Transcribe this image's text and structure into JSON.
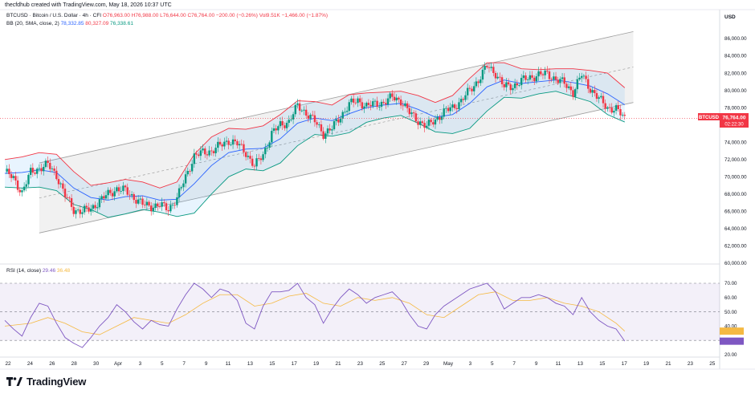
{
  "header": {
    "credit": "thecfdhub created with TradingView.com, May 18, 2026 10:37 UTC",
    "symbol_line": "BTCUSD · Bitcoin / U.S. Dollar · 4h · CFI",
    "ohlc": "O76,963.00 H76,988.00 L76,644.00 C76,764.00 −200.00 (−0.26%)",
    "vol": "Vol9.51K −1,466.00 (−1.87%)",
    "bb_label": "BB (20, SMA, close, 2)",
    "bb_mid": "78,332.85",
    "bb_upper": "80,327.09",
    "bb_lower": "76,338.61",
    "rsi_label": "RSI (14, close)",
    "rsi_value": "29.46",
    "rsi_ma": "36.48",
    "currency": "USD"
  },
  "price_tag": {
    "symbol": "BTCUSD",
    "price": "76,764.00",
    "countdown": "02:22:30"
  },
  "footer": {
    "brand": "TradingView",
    "logo": "tradingview-logo"
  },
  "colors": {
    "up": "#089981",
    "down": "#f23645",
    "bb_mid": "#2962ff",
    "bb_upper": "#f23645",
    "bb_lower": "#089981",
    "rsi": "#7e57c2",
    "rsi_ma": "#f5b942",
    "channel": "#9e9e9e"
  },
  "chart_data": [
    {
      "type": "candlestick",
      "title": "BTCUSD",
      "ylim": [
        60000,
        88000
      ],
      "y_ticks": [
        "86,000.00",
        "84,000.00",
        "82,000.00",
        "80,000.00",
        "78,000.00",
        "76,000.00",
        "74,000.00",
        "72,000.00",
        "70,000.00",
        "68,000.00",
        "66,000.00",
        "64,000.00",
        "62,000.00",
        "60,000.00"
      ],
      "x_ticks": [
        "22",
        "24",
        "26",
        "28",
        "30",
        "Apr",
        "3",
        "5",
        "7",
        "9",
        "11",
        "13",
        "15",
        "17",
        "19",
        "21",
        "23",
        "25",
        "27",
        "29",
        "May",
        "3",
        "5",
        "7",
        "9",
        "11",
        "13",
        "15",
        "17",
        "19",
        "21",
        "23",
        "25"
      ],
      "price_close_path": [
        [
          0,
          70600
        ],
        [
          2,
          69800
        ],
        [
          4,
          68200
        ],
        [
          6,
          70500
        ],
        [
          8,
          71000
        ],
        [
          10,
          71400
        ],
        [
          12,
          70200
        ],
        [
          14,
          67800
        ],
        [
          16,
          66200
        ],
        [
          18,
          66000
        ],
        [
          20,
          66300
        ],
        [
          22,
          67200
        ],
        [
          24,
          68000
        ],
        [
          26,
          68600
        ],
        [
          28,
          68400
        ],
        [
          30,
          67600
        ],
        [
          32,
          66800
        ],
        [
          34,
          66600
        ],
        [
          36,
          66700
        ],
        [
          38,
          66300
        ],
        [
          40,
          67500
        ],
        [
          42,
          70000
        ],
        [
          44,
          72400
        ],
        [
          46,
          72800
        ],
        [
          48,
          73000
        ],
        [
          50,
          73600
        ],
        [
          52,
          74200
        ],
        [
          54,
          73800
        ],
        [
          56,
          72800
        ],
        [
          58,
          71200
        ],
        [
          60,
          72600
        ],
        [
          62,
          75000
        ],
        [
          64,
          76000
        ],
        [
          66,
          76400
        ],
        [
          68,
          78200
        ],
        [
          70,
          77400
        ],
        [
          72,
          76400
        ],
        [
          74,
          75000
        ],
        [
          76,
          75600
        ],
        [
          78,
          77000
        ],
        [
          80,
          78400
        ],
        [
          82,
          78800
        ],
        [
          84,
          78200
        ],
        [
          86,
          78400
        ],
        [
          88,
          78600
        ],
        [
          90,
          79200
        ],
        [
          92,
          78800
        ],
        [
          94,
          77400
        ],
        [
          96,
          76500
        ],
        [
          98,
          75800
        ],
        [
          100,
          76600
        ],
        [
          102,
          77500
        ],
        [
          104,
          78000
        ],
        [
          106,
          78800
        ],
        [
          108,
          80000
        ],
        [
          110,
          81200
        ],
        [
          112,
          82800
        ],
        [
          114,
          82000
        ],
        [
          116,
          80400
        ],
        [
          118,
          80500
        ],
        [
          120,
          81100
        ],
        [
          122,
          81500
        ],
        [
          124,
          81800
        ],
        [
          126,
          81900
        ],
        [
          128,
          81300
        ],
        [
          130,
          80800
        ],
        [
          132,
          79800
        ],
        [
          134,
          81800
        ],
        [
          136,
          80200
        ],
        [
          138,
          79000
        ],
        [
          140,
          78000
        ],
        [
          142,
          77800
        ],
        [
          144,
          76764
        ]
      ],
      "bb_upper_path": [
        [
          0,
          72000
        ],
        [
          4,
          72300
        ],
        [
          8,
          72800
        ],
        [
          12,
          72600
        ],
        [
          16,
          70600
        ],
        [
          20,
          69000
        ],
        [
          24,
          69300
        ],
        [
          28,
          69700
        ],
        [
          32,
          69400
        ],
        [
          36,
          68700
        ],
        [
          40,
          69400
        ],
        [
          44,
          72600
        ],
        [
          48,
          74600
        ],
        [
          52,
          75600
        ],
        [
          56,
          75500
        ],
        [
          60,
          75900
        ],
        [
          64,
          77200
        ],
        [
          68,
          78800
        ],
        [
          72,
          78700
        ],
        [
          76,
          78300
        ],
        [
          80,
          79500
        ],
        [
          84,
          79700
        ],
        [
          88,
          79800
        ],
        [
          92,
          79900
        ],
        [
          96,
          79400
        ],
        [
          100,
          78600
        ],
        [
          104,
          79400
        ],
        [
          108,
          81400
        ],
        [
          112,
          83200
        ],
        [
          116,
          83200
        ],
        [
          120,
          82500
        ],
        [
          124,
          82400
        ],
        [
          128,
          82500
        ],
        [
          132,
          82500
        ],
        [
          136,
          82300
        ],
        [
          140,
          82000
        ],
        [
          144,
          80300
        ]
      ],
      "bb_mid_path": [
        [
          0,
          70400
        ],
        [
          4,
          70500
        ],
        [
          8,
          70800
        ],
        [
          12,
          70500
        ],
        [
          16,
          68700
        ],
        [
          20,
          67600
        ],
        [
          24,
          67300
        ],
        [
          28,
          67700
        ],
        [
          32,
          67800
        ],
        [
          36,
          67300
        ],
        [
          40,
          67400
        ],
        [
          44,
          69200
        ],
        [
          48,
          71300
        ],
        [
          52,
          72800
        ],
        [
          56,
          73200
        ],
        [
          60,
          73300
        ],
        [
          64,
          74400
        ],
        [
          68,
          76200
        ],
        [
          72,
          76800
        ],
        [
          76,
          76500
        ],
        [
          80,
          77300
        ],
        [
          84,
          78000
        ],
        [
          88,
          78300
        ],
        [
          92,
          78500
        ],
        [
          96,
          77800
        ],
        [
          100,
          76900
        ],
        [
          104,
          77200
        ],
        [
          108,
          78500
        ],
        [
          112,
          80400
        ],
        [
          116,
          81200
        ],
        [
          120,
          80800
        ],
        [
          124,
          81000
        ],
        [
          128,
          81200
        ],
        [
          132,
          80900
        ],
        [
          136,
          80500
        ],
        [
          140,
          79600
        ],
        [
          144,
          78333
        ]
      ],
      "bb_lower_path": [
        [
          0,
          68800
        ],
        [
          4,
          68700
        ],
        [
          8,
          68800
        ],
        [
          12,
          68400
        ],
        [
          16,
          66800
        ],
        [
          20,
          66200
        ],
        [
          24,
          65300
        ],
        [
          28,
          65700
        ],
        [
          32,
          66200
        ],
        [
          36,
          65900
        ],
        [
          40,
          65400
        ],
        [
          44,
          65800
        ],
        [
          48,
          68000
        ],
        [
          52,
          70000
        ],
        [
          56,
          70900
        ],
        [
          60,
          70700
        ],
        [
          64,
          71600
        ],
        [
          68,
          73600
        ],
        [
          72,
          74900
        ],
        [
          76,
          74700
        ],
        [
          80,
          75100
        ],
        [
          84,
          76300
        ],
        [
          88,
          76800
        ],
        [
          92,
          77100
        ],
        [
          96,
          76200
        ],
        [
          100,
          75200
        ],
        [
          104,
          75000
        ],
        [
          108,
          75600
        ],
        [
          112,
          77600
        ],
        [
          116,
          79200
        ],
        [
          120,
          79100
        ],
        [
          124,
          79600
        ],
        [
          128,
          79900
        ],
        [
          132,
          79300
        ],
        [
          136,
          78700
        ],
        [
          140,
          77200
        ],
        [
          144,
          76339
        ]
      ],
      "channel": {
        "upper": [
          [
            8,
            71600
          ],
          [
            146,
            86800
          ]
        ],
        "lower": [
          [
            8,
            63500
          ],
          [
            146,
            78600
          ]
        ],
        "mid": [
          [
            8,
            67550
          ],
          [
            146,
            82700
          ]
        ]
      }
    },
    {
      "type": "line",
      "title": "RSI (14, close)",
      "ylim": [
        20,
        75
      ],
      "y_ticks": [
        "70.00",
        "60.00",
        "50.00",
        "40.00",
        "30.00",
        "20.00"
      ],
      "bands": {
        "upper": 70,
        "mid": 50,
        "lower": 30
      },
      "rsi_path": [
        [
          0,
          44
        ],
        [
          2,
          38
        ],
        [
          4,
          33
        ],
        [
          6,
          46
        ],
        [
          8,
          56
        ],
        [
          10,
          54
        ],
        [
          12,
          42
        ],
        [
          14,
          32
        ],
        [
          16,
          28
        ],
        [
          18,
          25
        ],
        [
          20,
          32
        ],
        [
          22,
          40
        ],
        [
          24,
          46
        ],
        [
          26,
          55
        ],
        [
          28,
          50
        ],
        [
          30,
          43
        ],
        [
          32,
          38
        ],
        [
          34,
          44
        ],
        [
          36,
          41
        ],
        [
          38,
          40
        ],
        [
          40,
          52
        ],
        [
          42,
          62
        ],
        [
          44,
          70
        ],
        [
          46,
          66
        ],
        [
          48,
          60
        ],
        [
          50,
          66
        ],
        [
          52,
          64
        ],
        [
          54,
          58
        ],
        [
          56,
          42
        ],
        [
          58,
          38
        ],
        [
          60,
          54
        ],
        [
          62,
          64
        ],
        [
          64,
          64
        ],
        [
          66,
          65
        ],
        [
          68,
          70
        ],
        [
          70,
          60
        ],
        [
          72,
          55
        ],
        [
          74,
          42
        ],
        [
          76,
          52
        ],
        [
          78,
          60
        ],
        [
          80,
          66
        ],
        [
          82,
          62
        ],
        [
          84,
          56
        ],
        [
          86,
          60
        ],
        [
          88,
          62
        ],
        [
          90,
          64
        ],
        [
          92,
          58
        ],
        [
          94,
          48
        ],
        [
          96,
          40
        ],
        [
          98,
          38
        ],
        [
          100,
          48
        ],
        [
          102,
          54
        ],
        [
          104,
          58
        ],
        [
          106,
          62
        ],
        [
          108,
          66
        ],
        [
          110,
          68
        ],
        [
          112,
          70
        ],
        [
          114,
          64
        ],
        [
          116,
          52
        ],
        [
          118,
          56
        ],
        [
          120,
          60
        ],
        [
          122,
          60
        ],
        [
          124,
          62
        ],
        [
          126,
          60
        ],
        [
          128,
          56
        ],
        [
          130,
          54
        ],
        [
          132,
          48
        ],
        [
          134,
          60
        ],
        [
          136,
          50
        ],
        [
          138,
          44
        ],
        [
          140,
          40
        ],
        [
          142,
          38
        ],
        [
          144,
          29.46
        ]
      ],
      "rsi_ma_path": [
        [
          0,
          40
        ],
        [
          6,
          42
        ],
        [
          10,
          46
        ],
        [
          14,
          42
        ],
        [
          18,
          36
        ],
        [
          22,
          34
        ],
        [
          26,
          40
        ],
        [
          30,
          46
        ],
        [
          34,
          44
        ],
        [
          38,
          42
        ],
        [
          42,
          48
        ],
        [
          46,
          56
        ],
        [
          50,
          62
        ],
        [
          54,
          62
        ],
        [
          58,
          54
        ],
        [
          62,
          56
        ],
        [
          66,
          61
        ],
        [
          70,
          63
        ],
        [
          74,
          56
        ],
        [
          78,
          54
        ],
        [
          82,
          60
        ],
        [
          86,
          58
        ],
        [
          90,
          60
        ],
        [
          94,
          56
        ],
        [
          98,
          48
        ],
        [
          102,
          46
        ],
        [
          106,
          54
        ],
        [
          110,
          62
        ],
        [
          114,
          64
        ],
        [
          118,
          58
        ],
        [
          122,
          58
        ],
        [
          126,
          60
        ],
        [
          130,
          56
        ],
        [
          134,
          54
        ],
        [
          138,
          50
        ],
        [
          142,
          42
        ],
        [
          144,
          36.48
        ]
      ]
    }
  ]
}
